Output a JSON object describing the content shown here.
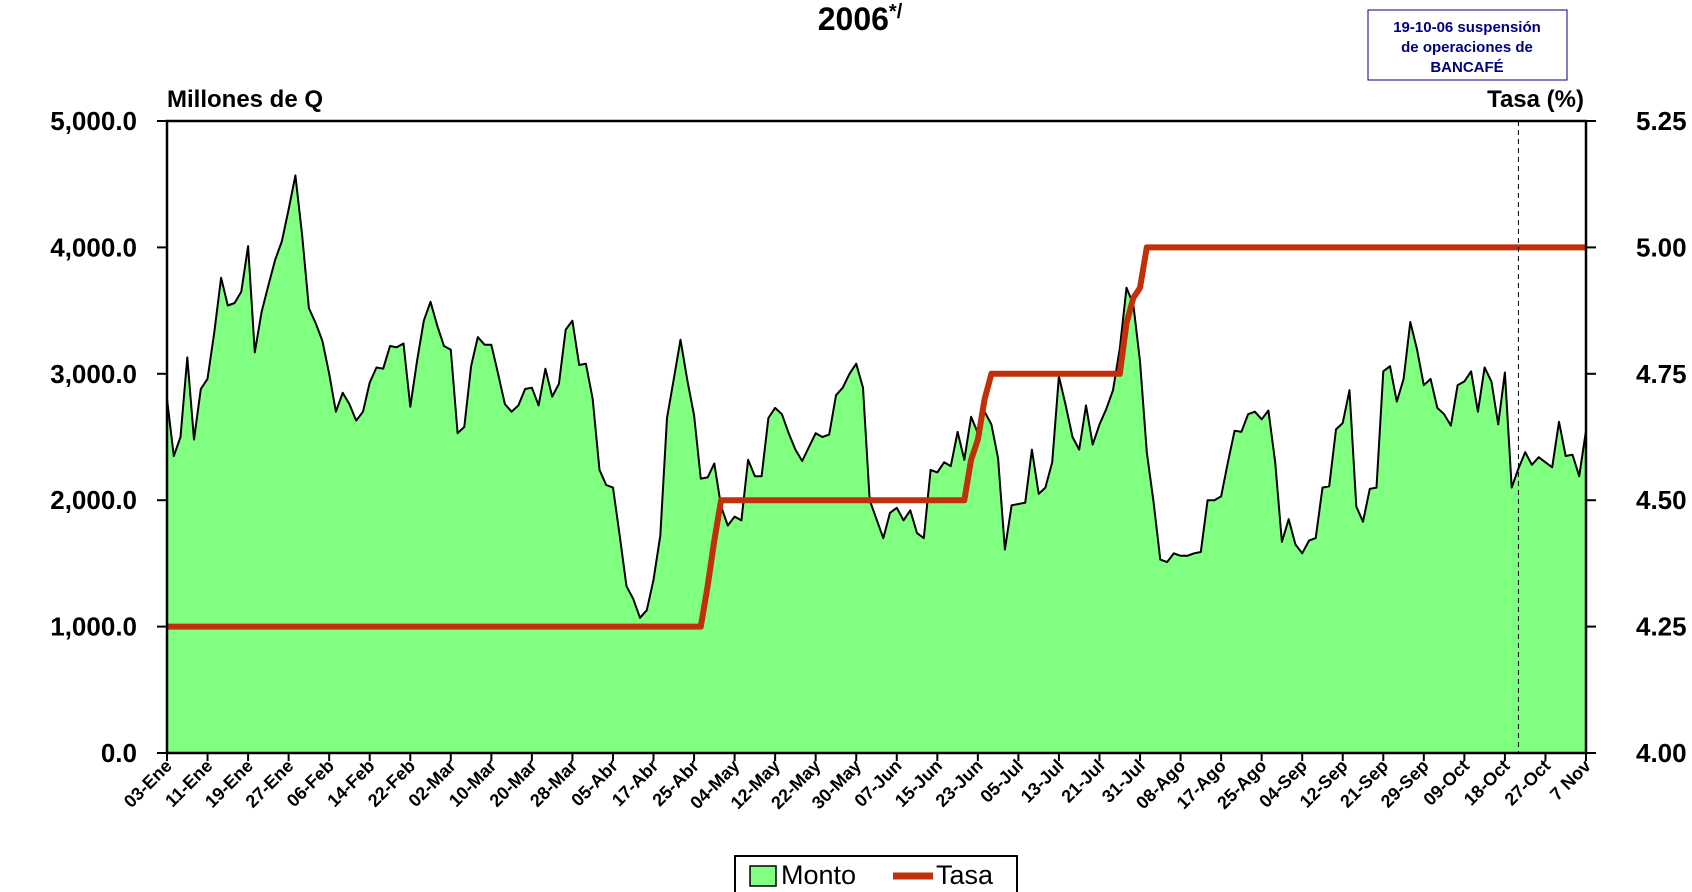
{
  "chart_data": {
    "type": "area_line",
    "title": "2006",
    "title_mark": "*/",
    "annotation": [
      "19-10-06 suspensión",
      "de operaciones de",
      "BANCAFÉ"
    ],
    "ylabel": "Millones de Q",
    "y2label": "Tasa (%)",
    "categories": [
      "03-Ene",
      null,
      null,
      null,
      null,
      null,
      "11-Ene",
      null,
      null,
      null,
      null,
      null,
      "19-Ene",
      null,
      null,
      null,
      null,
      null,
      "27-Ene",
      null,
      null,
      null,
      null,
      null,
      "06-Feb",
      null,
      null,
      null,
      null,
      null,
      "14-Feb",
      null,
      null,
      null,
      null,
      null,
      "22-Feb",
      null,
      null,
      null,
      null,
      null,
      "02-Mar",
      null,
      null,
      null,
      null,
      null,
      "10-Mar",
      null,
      null,
      null,
      null,
      null,
      "20-Mar",
      null,
      null,
      null,
      null,
      null,
      "28-Mar",
      null,
      null,
      null,
      null,
      null,
      "05-Abr",
      null,
      null,
      null,
      null,
      null,
      "17-Abr",
      null,
      null,
      null,
      null,
      null,
      "25-Abr",
      null,
      null,
      null,
      null,
      null,
      "04-May",
      null,
      null,
      null,
      null,
      null,
      "12-May",
      null,
      null,
      null,
      null,
      null,
      "22-May",
      null,
      null,
      null,
      null,
      null,
      "30-May",
      null,
      null,
      null,
      null,
      null,
      "07-Jun",
      null,
      null,
      null,
      null,
      null,
      "15-Jun",
      null,
      null,
      null,
      null,
      null,
      "23-Jun",
      null,
      null,
      null,
      null,
      null,
      "05-Jul",
      null,
      null,
      null,
      null,
      null,
      "13-Jul",
      null,
      null,
      null,
      null,
      null,
      "21-Jul",
      null,
      null,
      null,
      null,
      null,
      "31-Jul",
      null,
      null,
      null,
      null,
      null,
      "08-Ago",
      null,
      null,
      null,
      null,
      null,
      "17-Ago",
      null,
      null,
      null,
      null,
      null,
      "25-Ago",
      null,
      null,
      null,
      null,
      null,
      "04-Sep",
      null,
      null,
      null,
      null,
      null,
      "12-Sep",
      null,
      null,
      null,
      null,
      null,
      "21-Sep",
      null,
      null,
      null,
      null,
      null,
      "29-Sep",
      null,
      null,
      null,
      null,
      null,
      "09-Oct",
      null,
      null,
      null,
      null,
      null,
      "18-Oct",
      null,
      null,
      null,
      null,
      null,
      "27-Oct",
      null,
      null,
      null,
      null,
      null,
      "7 Nov"
    ],
    "series": [
      {
        "name": "Monto",
        "color": "#80ff80",
        "values": [
          2800,
          2350,
          2500,
          3130,
          2480,
          2880,
          2960,
          3330,
          3760,
          3540,
          3560,
          3650,
          4010,
          3170,
          3490,
          3700,
          3900,
          4050,
          4300,
          4570,
          4100,
          3520,
          3400,
          3260,
          3000,
          2700,
          2850,
          2760,
          2630,
          2700,
          2930,
          3050,
          3040,
          3220,
          3210,
          3240,
          2740,
          3100,
          3420,
          3570,
          3380,
          3220,
          3190,
          2530,
          2580,
          3060,
          3290,
          3230,
          3230,
          3000,
          2760,
          2700,
          2750,
          2880,
          2890,
          2750,
          3040,
          2820,
          2920,
          3350,
          3420,
          3070,
          3080,
          2800,
          2240,
          2120,
          2100,
          1720,
          1320,
          1220,
          1070,
          1130,
          1370,
          1720,
          2650,
          2960,
          3270,
          2950,
          2670,
          2170,
          2180,
          2290,
          1950,
          1800,
          1870,
          1840,
          2320,
          2190,
          2190,
          2650,
          2730,
          2680,
          2530,
          2400,
          2310,
          2420,
          2530,
          2500,
          2520,
          2830,
          2890,
          3000,
          3080,
          2890,
          2000,
          1850,
          1700,
          1900,
          1940,
          1840,
          1920,
          1740,
          1700,
          2240,
          2220,
          2300,
          2270,
          2540,
          2320,
          2660,
          2530,
          2700,
          2600,
          2330,
          1610,
          1960,
          1970,
          1980,
          2400,
          2050,
          2100,
          2300,
          2980,
          2750,
          2500,
          2400,
          2750,
          2440,
          2600,
          2720,
          2870,
          3200,
          3680,
          3550,
          3100,
          2380,
          1990,
          1530,
          1510,
          1580,
          1560,
          1560,
          1580,
          1590,
          2000,
          2000,
          2030,
          2300,
          2550,
          2540,
          2680,
          2700,
          2640,
          2710,
          2300,
          1670,
          1850,
          1650,
          1580,
          1680,
          1700,
          2100,
          2110,
          2560,
          2610,
          2870,
          1950,
          1830,
          2090,
          2100,
          3020,
          3060,
          2780,
          2960,
          3410,
          3190,
          2910,
          2960,
          2730,
          2680,
          2590,
          2910,
          2940,
          3020,
          2700,
          3050,
          2940,
          2600,
          3010,
          2100,
          2250,
          2380,
          2280,
          2340,
          2300,
          2260,
          2620,
          2350,
          2360,
          2190,
          2550
        ]
      },
      {
        "name": "Tasa",
        "color": "#c0300a",
        "axis": "y2",
        "values": [
          4.25,
          4.25,
          4.25,
          4.25,
          4.25,
          4.25,
          4.25,
          4.25,
          4.25,
          4.25,
          4.25,
          4.25,
          4.25,
          4.25,
          4.25,
          4.25,
          4.25,
          4.25,
          4.25,
          4.25,
          4.25,
          4.25,
          4.25,
          4.25,
          4.25,
          4.25,
          4.25,
          4.25,
          4.25,
          4.25,
          4.25,
          4.25,
          4.25,
          4.25,
          4.25,
          4.25,
          4.25,
          4.25,
          4.25,
          4.25,
          4.25,
          4.25,
          4.25,
          4.25,
          4.25,
          4.25,
          4.25,
          4.25,
          4.25,
          4.25,
          4.25,
          4.25,
          4.25,
          4.25,
          4.25,
          4.25,
          4.25,
          4.25,
          4.25,
          4.25,
          4.25,
          4.25,
          4.25,
          4.25,
          4.25,
          4.25,
          4.25,
          4.25,
          4.25,
          4.25,
          4.25,
          4.25,
          4.25,
          4.25,
          4.25,
          4.25,
          4.25,
          4.25,
          4.25,
          4.25,
          4.33,
          4.42,
          4.5,
          4.5,
          4.5,
          4.5,
          4.5,
          4.5,
          4.5,
          4.5,
          4.5,
          4.5,
          4.5,
          4.5,
          4.5,
          4.5,
          4.5,
          4.5,
          4.5,
          4.5,
          4.5,
          4.5,
          4.5,
          4.5,
          4.5,
          4.5,
          4.5,
          4.5,
          4.5,
          4.5,
          4.5,
          4.5,
          4.5,
          4.5,
          4.5,
          4.5,
          4.5,
          4.5,
          4.5,
          4.58,
          4.62,
          4.7,
          4.75,
          4.75,
          4.75,
          4.75,
          4.75,
          4.75,
          4.75,
          4.75,
          4.75,
          4.75,
          4.75,
          4.75,
          4.75,
          4.75,
          4.75,
          4.75,
          4.75,
          4.75,
          4.75,
          4.75,
          4.85,
          4.9,
          4.92,
          5,
          5,
          5,
          5,
          5,
          5,
          5,
          5,
          5,
          5,
          5,
          5,
          5,
          5,
          5,
          5,
          5,
          5,
          5,
          5,
          5,
          5,
          5,
          5,
          5,
          5,
          5,
          5,
          5,
          5,
          5,
          5,
          5,
          5,
          5,
          5,
          5,
          5,
          5,
          5,
          5,
          5,
          5,
          5,
          5,
          5,
          5,
          5,
          5,
          5,
          5,
          5,
          5,
          5,
          5,
          5,
          5,
          5,
          5,
          5,
          5,
          5,
          5,
          5,
          5,
          5
        ]
      }
    ],
    "ylim": [
      0,
      5000
    ],
    "yticks": [
      {
        "value": 0,
        "label": "0.0"
      },
      {
        "value": 1000,
        "label": "1,000.0"
      },
      {
        "value": 2000,
        "label": "2,000.0"
      },
      {
        "value": 3000,
        "label": "3,000.0"
      },
      {
        "value": 4000,
        "label": "4,000.0"
      },
      {
        "value": 5000,
        "label": "5,000.0"
      }
    ],
    "y2lim": [
      4,
      5.25
    ],
    "y2ticks": [
      {
        "value": 4,
        "label": "4.00"
      },
      4.25,
      {
        "value": 4.5,
        "label": "4.50"
      },
      4.75,
      {
        "value": 5,
        "label": "5.00"
      },
      5.25
    ]
  }
}
